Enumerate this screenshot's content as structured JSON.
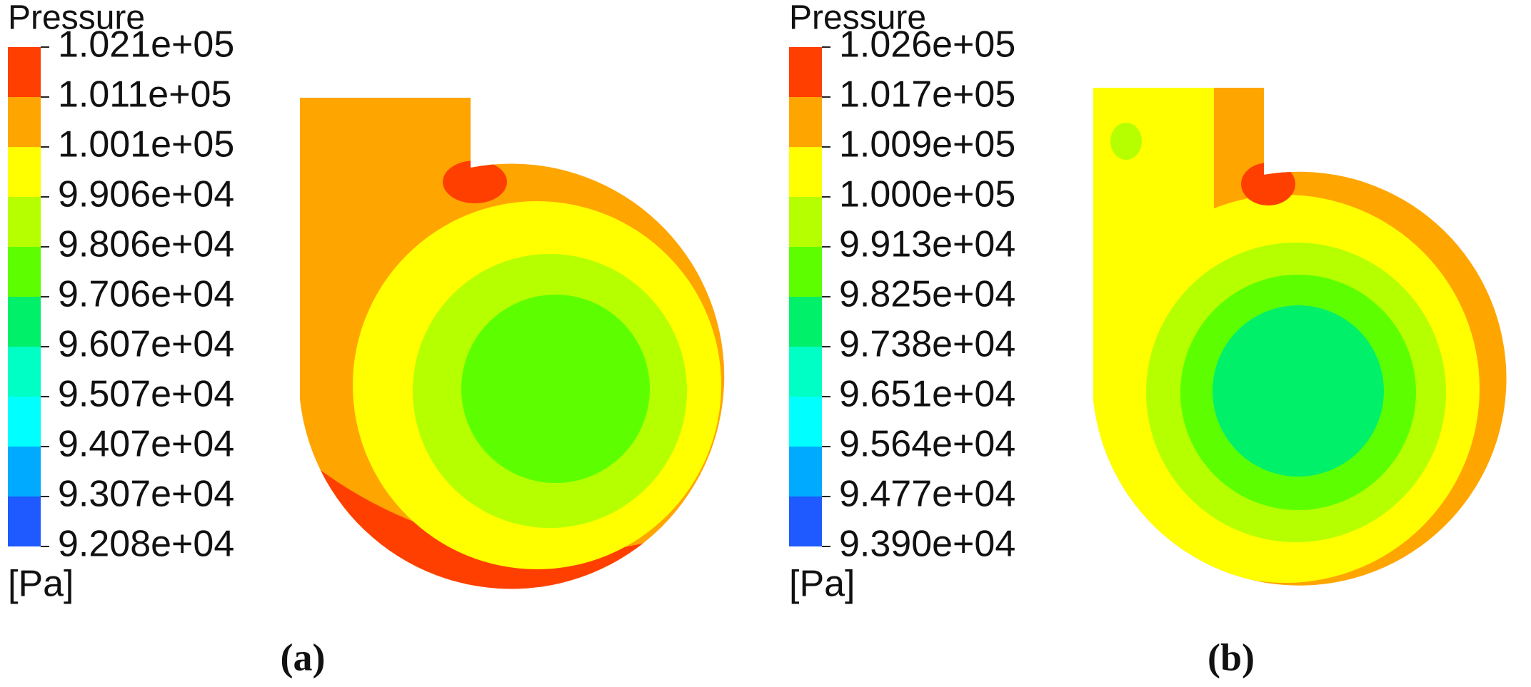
{
  "panels": [
    {
      "legend": {
        "title": "Pressure",
        "labels": [
          "1.021e+05",
          "1.011e+05",
          "1.001e+05",
          "9.906e+04",
          "9.806e+04",
          "9.706e+04",
          "9.607e+04",
          "9.507e+04",
          "9.407e+04",
          "9.307e+04",
          "9.208e+04"
        ],
        "colors": [
          "#ff3f00",
          "#ffa500",
          "#ffff00",
          "#b5ff00",
          "#5dff00",
          "#00f06a",
          "#00ffc4",
          "#00ffff",
          "#00aaff",
          "#1e5aff"
        ],
        "unit": "[Pa]"
      },
      "caption": "(a)"
    },
    {
      "legend": {
        "title": "Pressure",
        "labels": [
          "1.026e+05",
          "1.017e+05",
          "1.009e+05",
          "1.000e+05",
          "9.913e+04",
          "9.825e+04",
          "9.738e+04",
          "9.651e+04",
          "9.564e+04",
          "9.477e+04",
          "9.390e+04"
        ],
        "colors": [
          "#ff3f00",
          "#ffa500",
          "#ffff00",
          "#b5ff00",
          "#5dff00",
          "#00f06a",
          "#00ffc4",
          "#00ffff",
          "#00aaff",
          "#1e5aff"
        ],
        "unit": "[Pa]"
      },
      "caption": "(b)"
    }
  ]
}
